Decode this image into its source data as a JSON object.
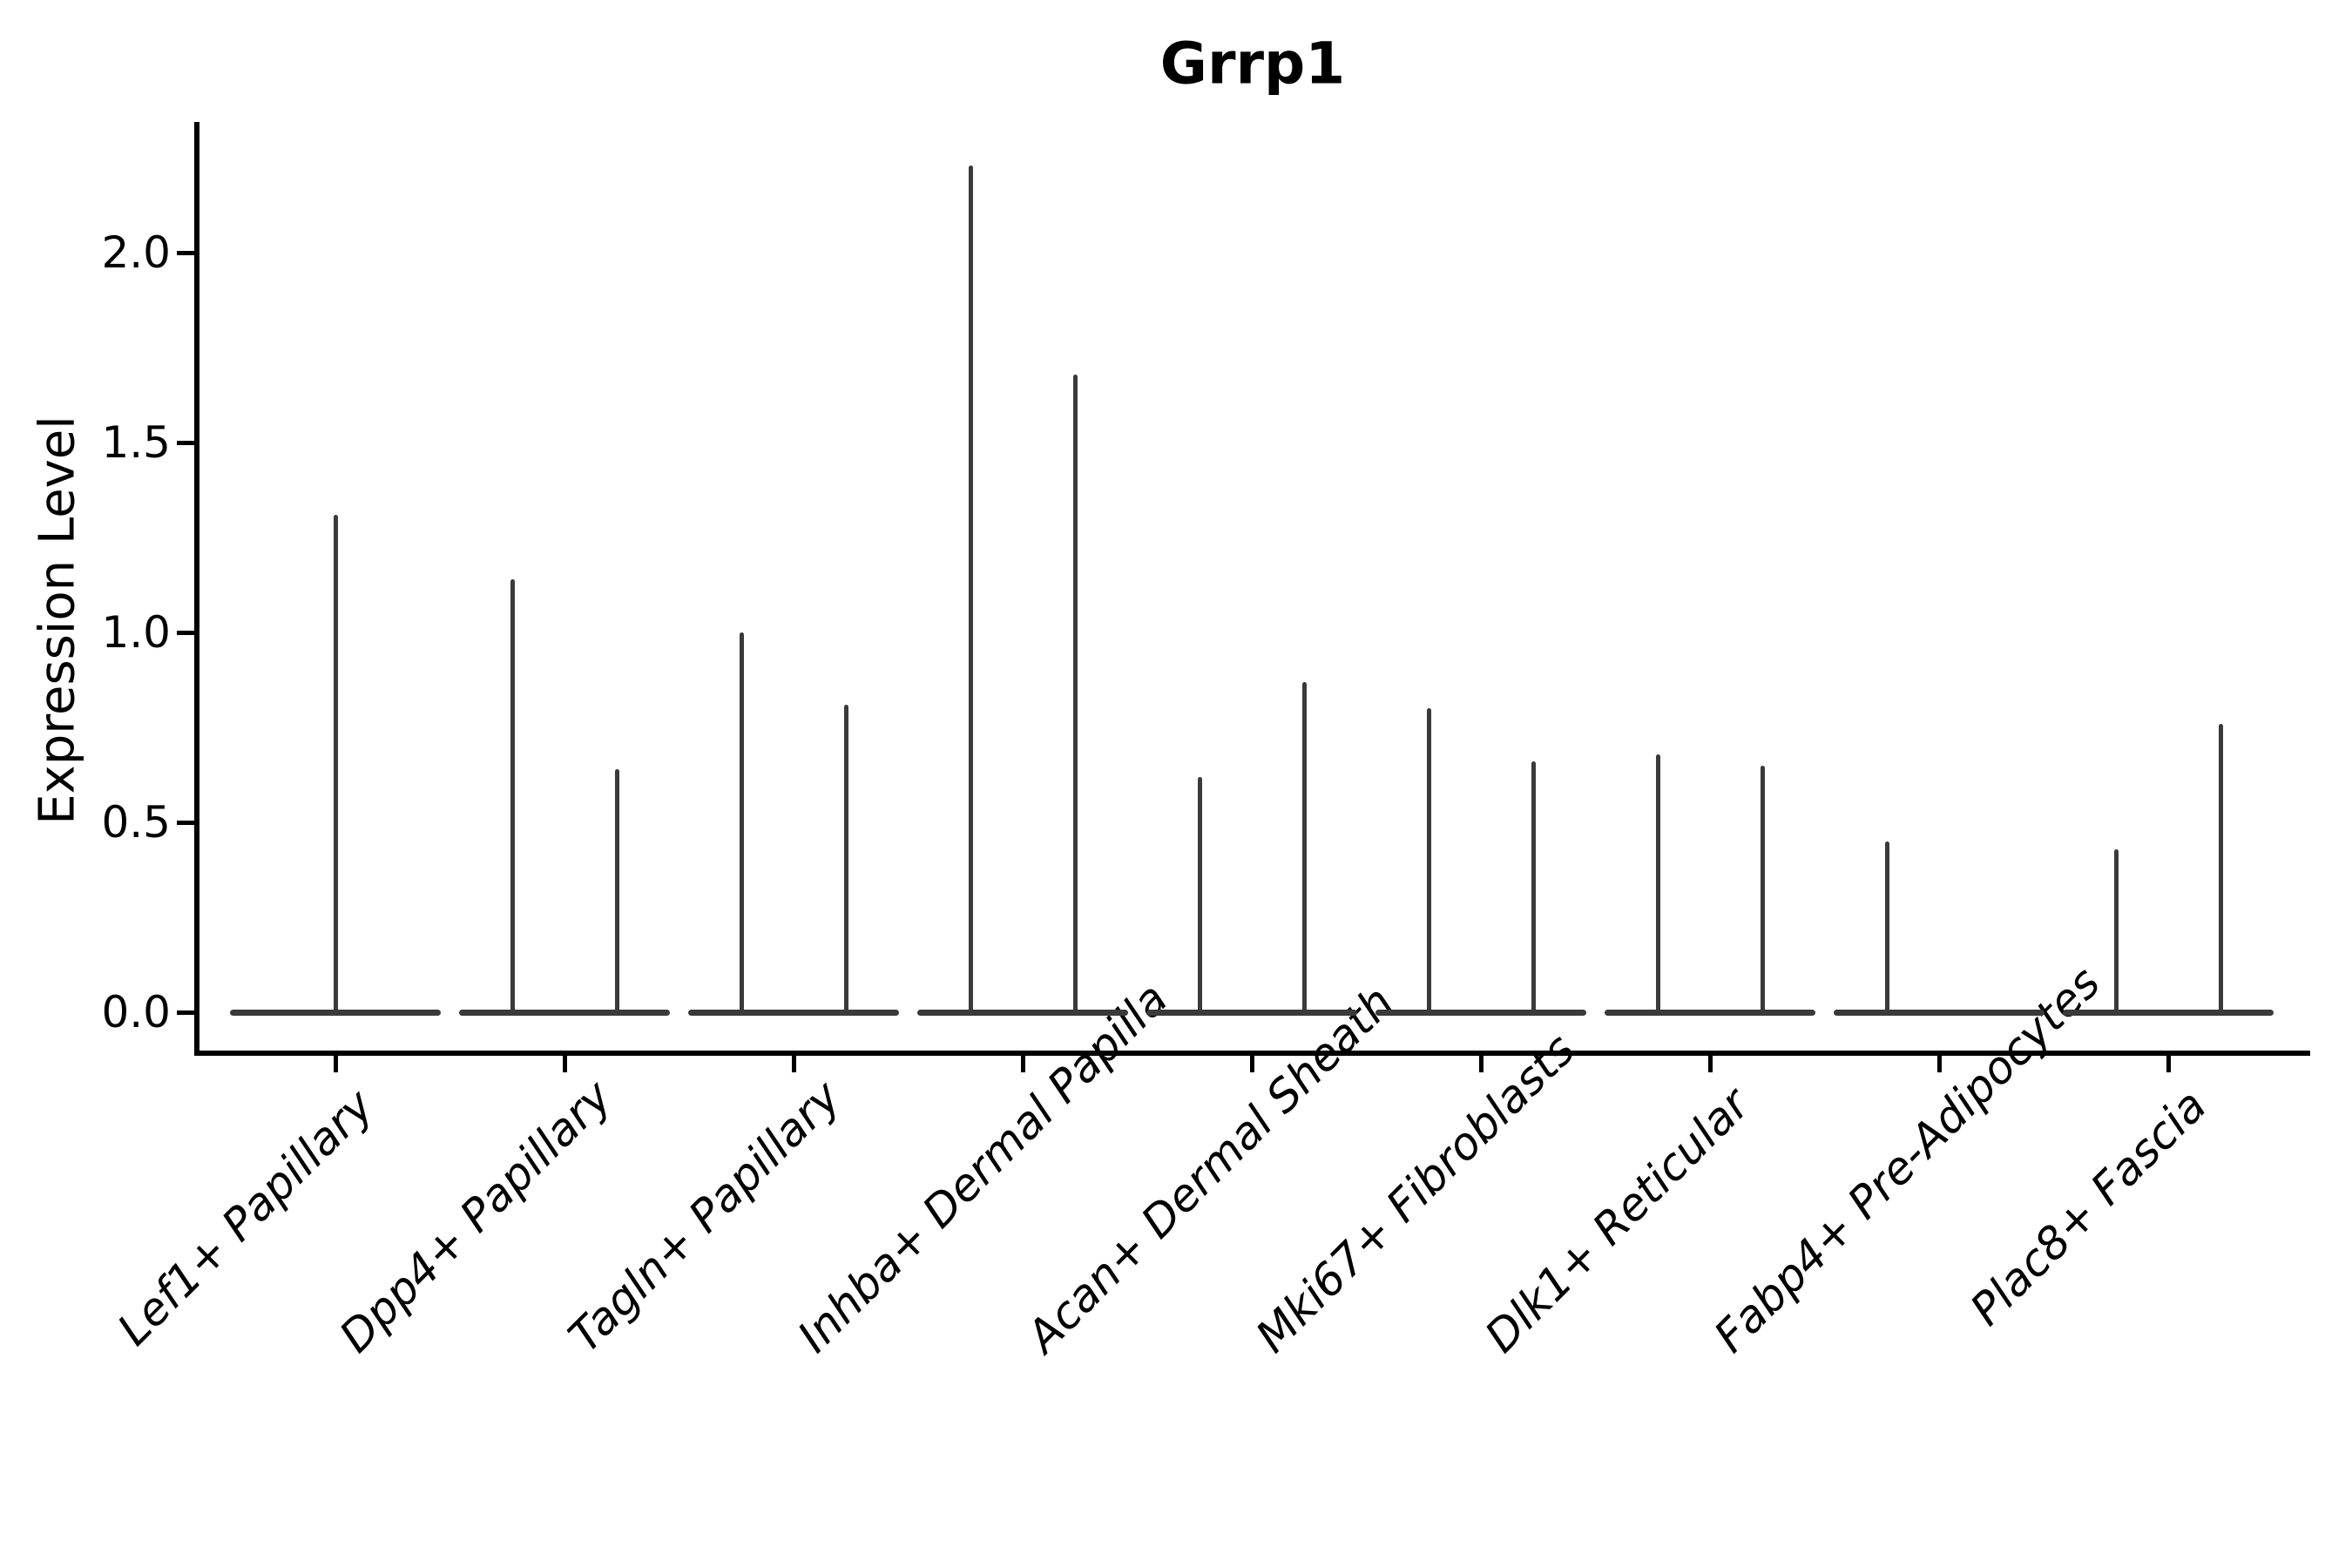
{
  "chart_data": {
    "type": "violin",
    "title": "Grrp1",
    "ylabel": "Expression Level",
    "xlabel": "",
    "legend": "none",
    "grid": false,
    "ylim": [
      -0.11,
      2.34
    ],
    "y_ticks": [
      0.0,
      0.5,
      1.0,
      1.5,
      2.0
    ],
    "y_tick_labels": [
      "0.0",
      "0.5",
      "1.0",
      "1.5",
      "2.0"
    ],
    "categories": [
      "Lef1+ Papillary",
      "Dpp4+ Papillary",
      "Tagln+ Papillary",
      "Inhba+ Dermal Papilla",
      "Acan+ Dermal Sheath",
      "Mki67+ Fibroblasts",
      "Dlk1+ Reticular",
      "Fabp4+ Pre-Adipocytes",
      "Plac8+ Fascia"
    ],
    "description": "Violin plot of Grrp1 expression; each category shows near-zero-width violins collapsed to a flat baseline at 0 with thin spikes reaching the maximum expression value. Most categories contain two dodged violins; Lef1+ Papillary has a single centered violin and the second violin of Fabp4+ Pre-Adipocytes is flat at 0.",
    "violins": [
      {
        "category": "Lef1+ Papillary",
        "spikes": [
          {
            "dodge": 0,
            "max": 1.31
          }
        ]
      },
      {
        "category": "Dpp4+ Papillary",
        "spikes": [
          {
            "dodge": -1,
            "max": 1.14
          },
          {
            "dodge": 1,
            "max": 0.64
          }
        ]
      },
      {
        "category": "Tagln+ Papillary",
        "spikes": [
          {
            "dodge": -1,
            "max": 1.0
          },
          {
            "dodge": 1,
            "max": 0.81
          }
        ]
      },
      {
        "category": "Inhba+ Dermal Papilla",
        "spikes": [
          {
            "dodge": -1,
            "max": 2.23
          },
          {
            "dodge": 1,
            "max": 1.68
          }
        ]
      },
      {
        "category": "Acan+ Dermal Sheath",
        "spikes": [
          {
            "dodge": -1,
            "max": 0.62
          },
          {
            "dodge": 1,
            "max": 0.87
          }
        ]
      },
      {
        "category": "Mki67+ Fibroblasts",
        "spikes": [
          {
            "dodge": -1,
            "max": 0.8
          },
          {
            "dodge": 1,
            "max": 0.66
          }
        ]
      },
      {
        "category": "Dlk1+ Reticular",
        "spikes": [
          {
            "dodge": -1,
            "max": 0.68
          },
          {
            "dodge": 1,
            "max": 0.65
          }
        ]
      },
      {
        "category": "Fabp4+ Pre-Adipocytes",
        "spikes": [
          {
            "dodge": -1,
            "max": 0.45
          },
          {
            "dodge": 1,
            "max": 0.0
          }
        ]
      },
      {
        "category": "Plac8+ Fascia",
        "spikes": [
          {
            "dodge": -1,
            "max": 0.43
          },
          {
            "dodge": 1,
            "max": 0.76
          }
        ]
      }
    ],
    "colors": {
      "violin": "#3a3a3a",
      "axis": "#000000",
      "text": "#000000",
      "background": "#ffffff"
    }
  }
}
